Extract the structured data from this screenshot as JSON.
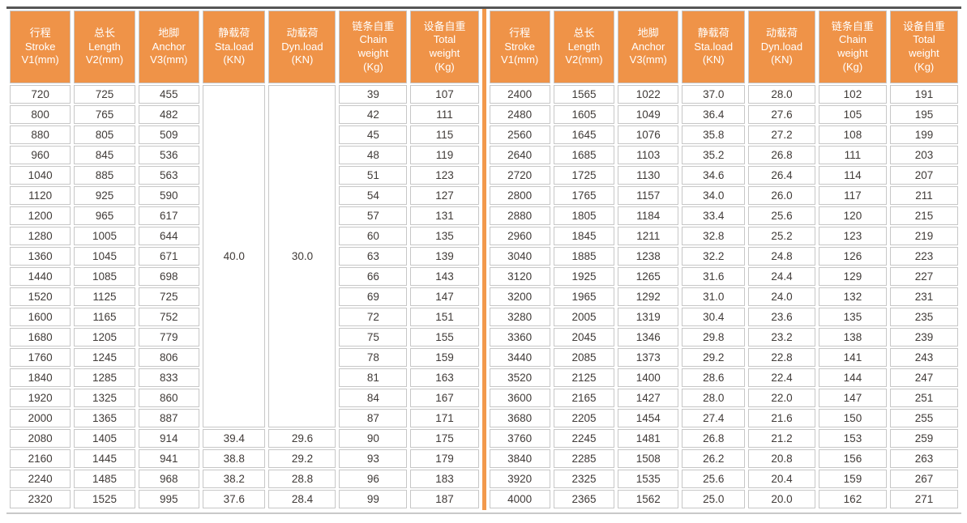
{
  "colors": {
    "header_bg": "#ef9348",
    "header_text": "#ffffff",
    "center_divider": "#f2994c",
    "cell_border": "#c7c7c7",
    "cell_text": "#403b38",
    "top_rule": "#565656",
    "bottom_rule": "#c9c9c9"
  },
  "table": {
    "header_columns": [
      {
        "lines": [
          "行程",
          "Stroke",
          "V1(mm)"
        ]
      },
      {
        "lines": [
          "总长",
          "Length",
          "V2(mm)"
        ]
      },
      {
        "lines": [
          "地脚",
          "Anchor",
          "V3(mm)"
        ]
      },
      {
        "lines": [
          "静载荷",
          "Sta.load",
          "(KN)"
        ]
      },
      {
        "lines": [
          "动载荷",
          "Dyn.load",
          "(KN)"
        ]
      },
      {
        "lines": [
          "链条自重",
          "Chain",
          "weight",
          "(Kg)"
        ]
      },
      {
        "lines": [
          "设备自重",
          "Total",
          "weight",
          "(Kg)"
        ]
      }
    ],
    "left": {
      "merged": {
        "cols": [
          3,
          4
        ],
        "values": [
          "40.0",
          "30.0"
        ],
        "span": 17
      },
      "rows": [
        [
          "720",
          "725",
          "455",
          null,
          null,
          "39",
          "107"
        ],
        [
          "800",
          "765",
          "482",
          null,
          null,
          "42",
          "111"
        ],
        [
          "880",
          "805",
          "509",
          null,
          null,
          "45",
          "115"
        ],
        [
          "960",
          "845",
          "536",
          null,
          null,
          "48",
          "119"
        ],
        [
          "1040",
          "885",
          "563",
          null,
          null,
          "51",
          "123"
        ],
        [
          "1120",
          "925",
          "590",
          null,
          null,
          "54",
          "127"
        ],
        [
          "1200",
          "965",
          "617",
          null,
          null,
          "57",
          "131"
        ],
        [
          "1280",
          "1005",
          "644",
          null,
          null,
          "60",
          "135"
        ],
        [
          "1360",
          "1045",
          "671",
          null,
          null,
          "63",
          "139"
        ],
        [
          "1440",
          "1085",
          "698",
          null,
          null,
          "66",
          "143"
        ],
        [
          "1520",
          "1125",
          "725",
          null,
          null,
          "69",
          "147"
        ],
        [
          "1600",
          "1165",
          "752",
          null,
          null,
          "72",
          "151"
        ],
        [
          "1680",
          "1205",
          "779",
          null,
          null,
          "75",
          "155"
        ],
        [
          "1760",
          "1245",
          "806",
          null,
          null,
          "78",
          "159"
        ],
        [
          "1840",
          "1285",
          "833",
          null,
          null,
          "81",
          "163"
        ],
        [
          "1920",
          "1325",
          "860",
          null,
          null,
          "84",
          "167"
        ],
        [
          "2000",
          "1365",
          "887",
          null,
          null,
          "87",
          "171"
        ],
        [
          "2080",
          "1405",
          "914",
          "39.4",
          "29.6",
          "90",
          "175"
        ],
        [
          "2160",
          "1445",
          "941",
          "38.8",
          "29.2",
          "93",
          "179"
        ],
        [
          "2240",
          "1485",
          "968",
          "38.2",
          "28.8",
          "96",
          "183"
        ],
        [
          "2320",
          "1525",
          "995",
          "37.6",
          "28.4",
          "99",
          "187"
        ]
      ]
    },
    "right": {
      "rows": [
        [
          "2400",
          "1565",
          "1022",
          "37.0",
          "28.0",
          "102",
          "191"
        ],
        [
          "2480",
          "1605",
          "1049",
          "36.4",
          "27.6",
          "105",
          "195"
        ],
        [
          "2560",
          "1645",
          "1076",
          "35.8",
          "27.2",
          "108",
          "199"
        ],
        [
          "2640",
          "1685",
          "1103",
          "35.2",
          "26.8",
          "111",
          "203"
        ],
        [
          "2720",
          "1725",
          "1130",
          "34.6",
          "26.4",
          "114",
          "207"
        ],
        [
          "2800",
          "1765",
          "1157",
          "34.0",
          "26.0",
          "117",
          "211"
        ],
        [
          "2880",
          "1805",
          "1184",
          "33.4",
          "25.6",
          "120",
          "215"
        ],
        [
          "2960",
          "1845",
          "1211",
          "32.8",
          "25.2",
          "123",
          "219"
        ],
        [
          "3040",
          "1885",
          "1238",
          "32.2",
          "24.8",
          "126",
          "223"
        ],
        [
          "3120",
          "1925",
          "1265",
          "31.6",
          "24.4",
          "129",
          "227"
        ],
        [
          "3200",
          "1965",
          "1292",
          "31.0",
          "24.0",
          "132",
          "231"
        ],
        [
          "3280",
          "2005",
          "1319",
          "30.4",
          "23.6",
          "135",
          "235"
        ],
        [
          "3360",
          "2045",
          "1346",
          "29.8",
          "23.2",
          "138",
          "239"
        ],
        [
          "3440",
          "2085",
          "1373",
          "29.2",
          "22.8",
          "141",
          "243"
        ],
        [
          "3520",
          "2125",
          "1400",
          "28.6",
          "22.4",
          "144",
          "247"
        ],
        [
          "3600",
          "2165",
          "1427",
          "28.0",
          "22.0",
          "147",
          "251"
        ],
        [
          "3680",
          "2205",
          "1454",
          "27.4",
          "21.6",
          "150",
          "255"
        ],
        [
          "3760",
          "2245",
          "1481",
          "26.8",
          "21.2",
          "153",
          "259"
        ],
        [
          "3840",
          "2285",
          "1508",
          "26.2",
          "20.8",
          "156",
          "263"
        ],
        [
          "3920",
          "2325",
          "1535",
          "25.6",
          "20.4",
          "159",
          "267"
        ],
        [
          "4000",
          "2365",
          "1562",
          "25.0",
          "20.0",
          "162",
          "271"
        ]
      ]
    }
  }
}
